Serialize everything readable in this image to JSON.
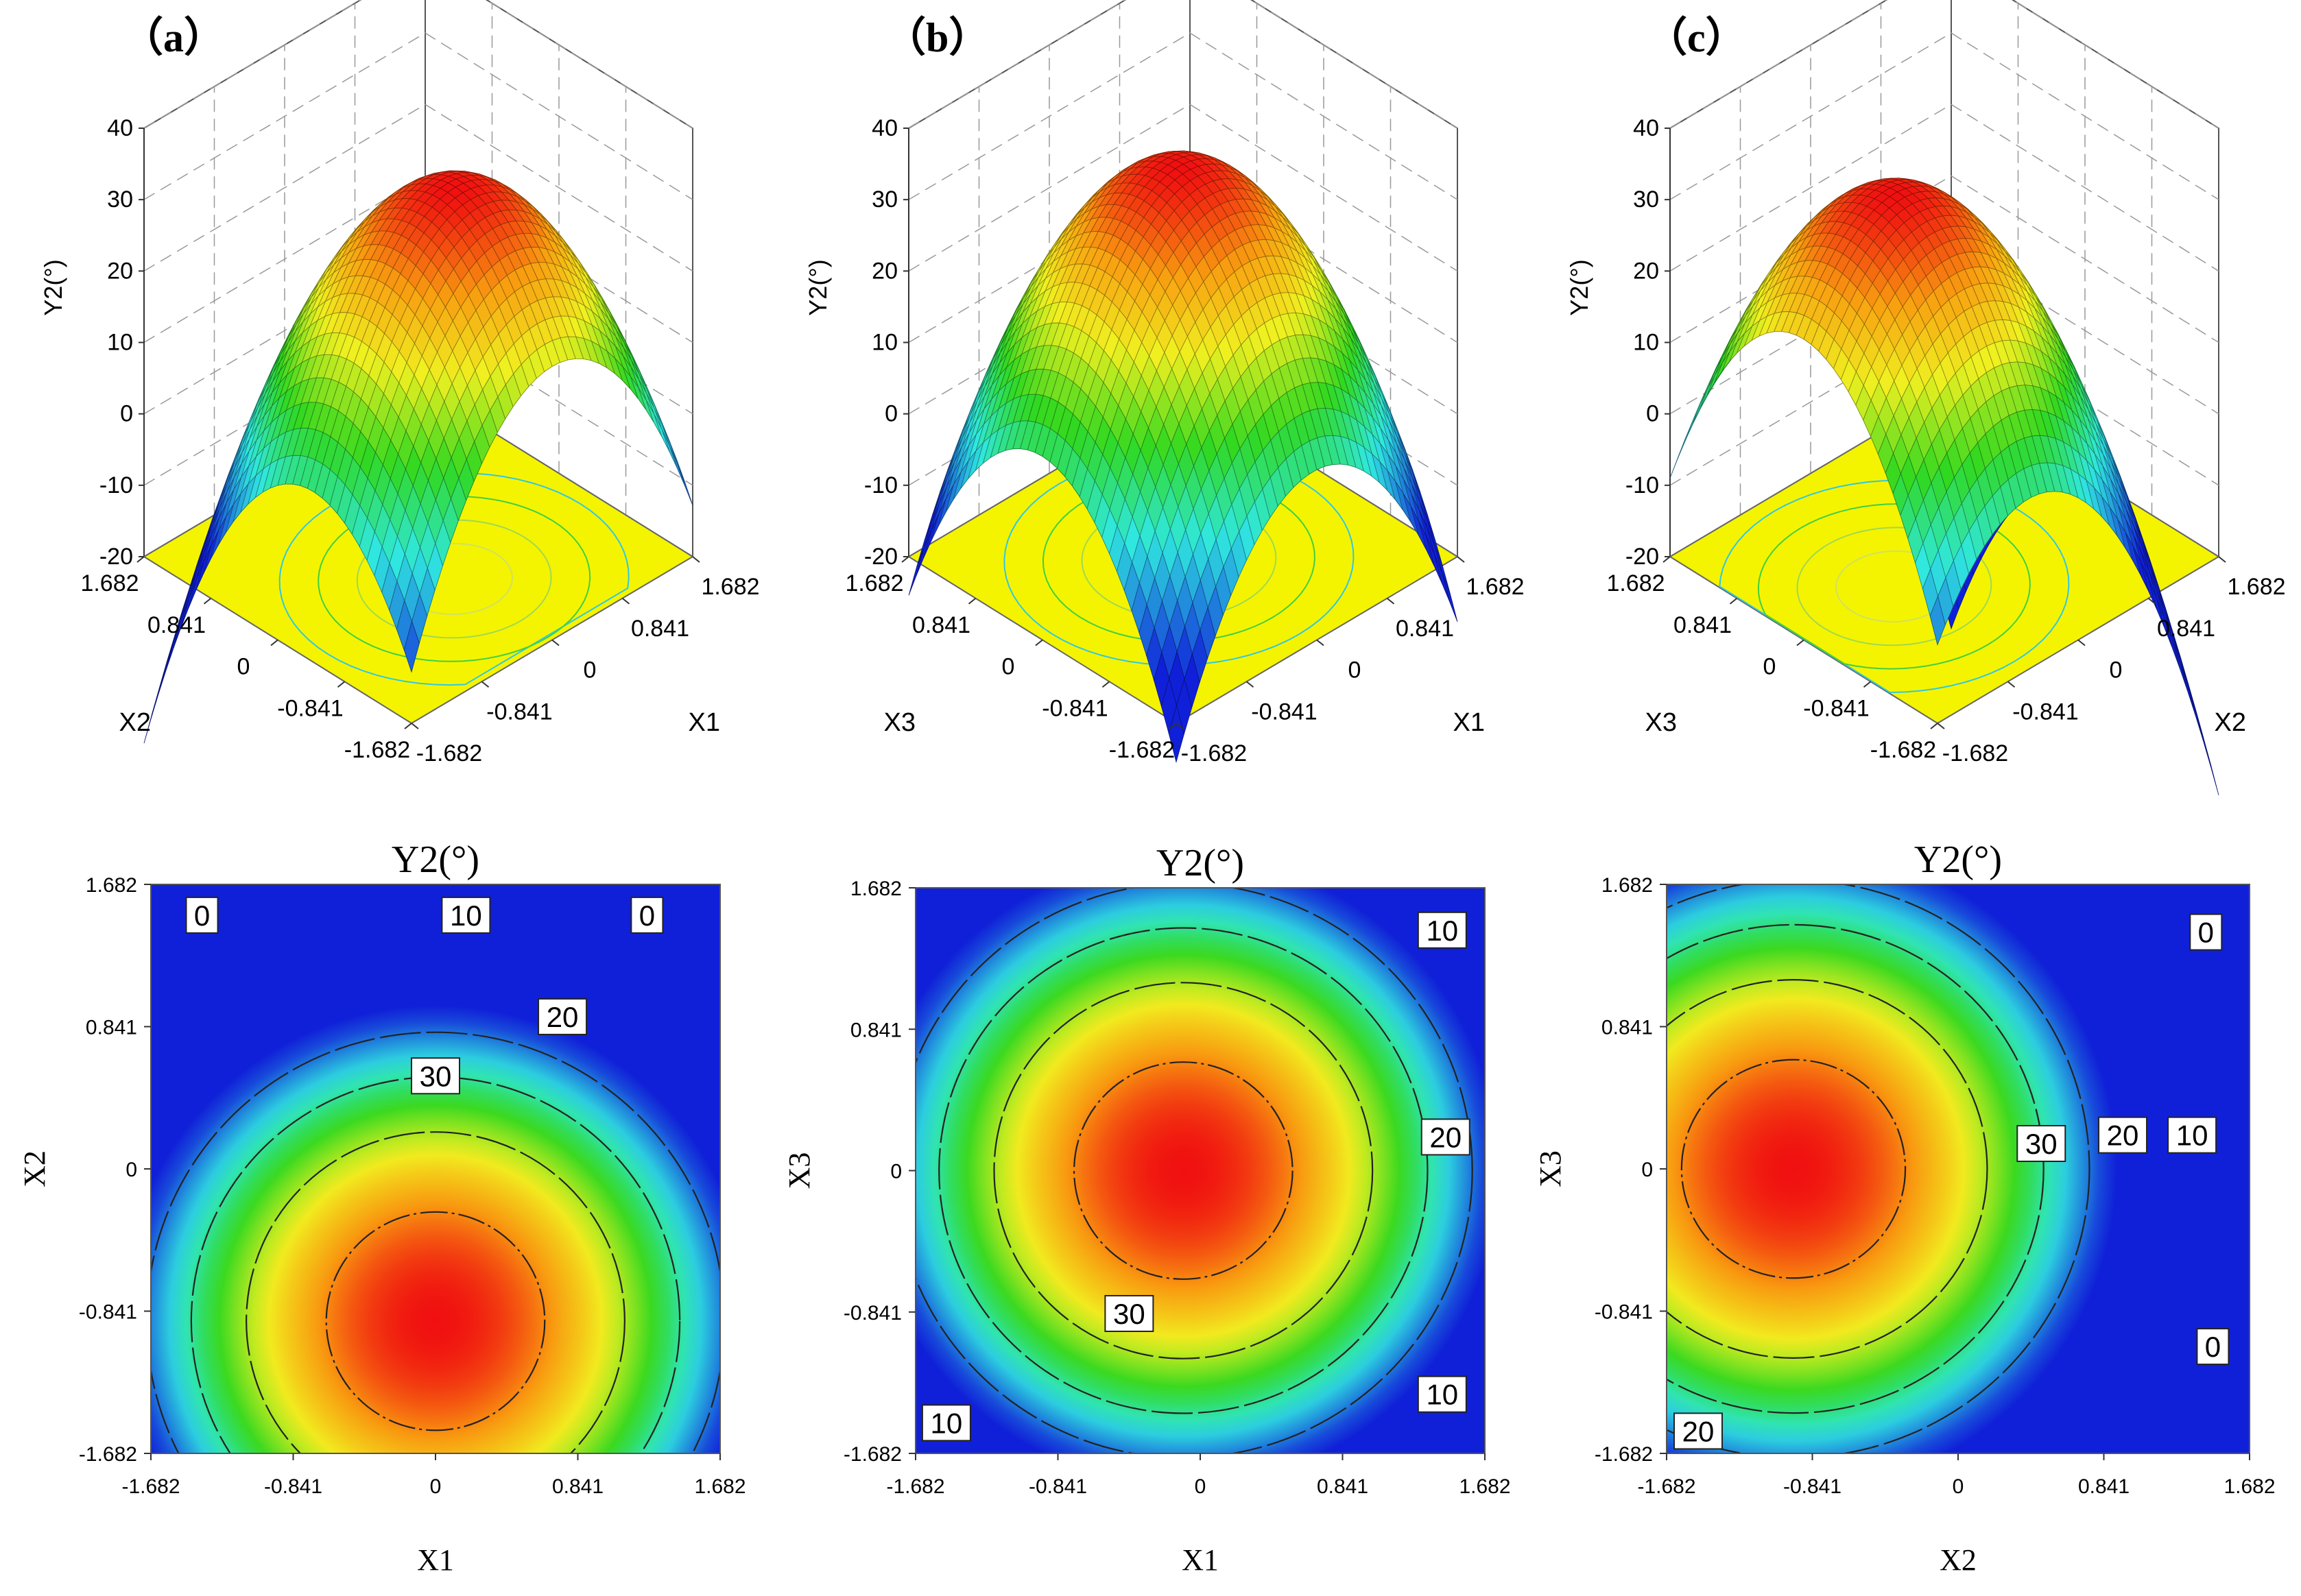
{
  "figure": {
    "panel_labels": [
      "（a）",
      "（b）",
      "（c）"
    ]
  },
  "colors": {
    "low": "#1020d8",
    "cyan": "#30e8e0",
    "green": "#30d820",
    "yellow": "#f0f020",
    "orange": "#f8a010",
    "high": "#f01010",
    "base_plane": "#f4f400",
    "contour_line": "#222222"
  },
  "chart_data": [
    {
      "panel": "a",
      "type": "surface3d",
      "zlabel": "Y2(°)",
      "xlabel": "X1",
      "ylabel": "X2",
      "zlim": [
        -20,
        40
      ],
      "zticks": [
        "-20",
        "-10",
        "0",
        "10",
        "20",
        "30",
        "40"
      ],
      "xticks": [
        "-1.682",
        "-0.841",
        "0",
        "0.841",
        "1.682"
      ],
      "yticks": [
        "-1.682",
        "-0.841",
        "0",
        "0.841",
        "1.682"
      ],
      "model": {
        "peak": 35,
        "cx": 0,
        "cy": -0.45,
        "ax": 11,
        "ay": 11
      }
    },
    {
      "panel": "b",
      "type": "surface3d",
      "zlabel": "Y2(°)",
      "xlabel": "X1",
      "ylabel": "X3",
      "zlim": [
        -20,
        40
      ],
      "zticks": [
        "-20",
        "-10",
        "0",
        "10",
        "20",
        "30",
        "40"
      ],
      "xticks": [
        "-1.682",
        "-0.841",
        "0",
        "0.841",
        "1.682"
      ],
      "yticks": [
        "-1.682",
        "-0.841",
        "0",
        "0.841",
        "1.682"
      ],
      "model": {
        "peak": 35,
        "cx": -0.05,
        "cy": 0.0,
        "ax": 11,
        "ay": 11
      }
    },
    {
      "panel": "c",
      "type": "surface3d",
      "zlabel": "Y2(°)",
      "xlabel": "X2",
      "ylabel": "X3",
      "zlim": [
        -20,
        40
      ],
      "zticks": [
        "-20",
        "-10",
        "0",
        "10",
        "20",
        "30",
        "40"
      ],
      "xticks": [
        "-1.682",
        "-0.841",
        "0",
        "0.841",
        "1.682"
      ],
      "yticks": [
        "-1.682",
        "-0.841",
        "0",
        "0.841",
        "1.682"
      ],
      "model": {
        "peak": 35,
        "cx": -0.6,
        "cy": 0.0,
        "ax": 11,
        "ay": 11
      }
    },
    {
      "panel": "a",
      "type": "contour",
      "title": "Y2(°)",
      "xlabel": "X1",
      "ylabel": "X2",
      "xlim": [
        -1.682,
        1.682
      ],
      "ylim": [
        -1.682,
        1.682
      ],
      "xticks": [
        "-1.682",
        "-0.841",
        "0",
        "0.841",
        "1.682"
      ],
      "yticks": [
        "-1.682",
        "-0.841",
        "0",
        "0.841",
        "1.682"
      ],
      "levels": [
        0,
        10,
        20,
        30
      ],
      "model": {
        "peak": 35,
        "cx": 0,
        "cy": -0.9,
        "ax": 12,
        "ay": 12
      },
      "labels": [
        {
          "text": "0",
          "x": -1.38,
          "y": 1.5
        },
        {
          "text": "10",
          "x": 0.18,
          "y": 1.5
        },
        {
          "text": "0",
          "x": 1.25,
          "y": 1.5
        },
        {
          "text": "20",
          "x": 0.75,
          "y": 0.9
        },
        {
          "text": "30",
          "x": 0.0,
          "y": 0.55
        }
      ]
    },
    {
      "panel": "b",
      "type": "contour",
      "title": "Y2(°)",
      "xlabel": "X1",
      "ylabel": "X3",
      "xlim": [
        -1.682,
        1.682
      ],
      "ylim": [
        -1.682,
        1.682
      ],
      "xticks": [
        "-1.682",
        "-0.841",
        "0",
        "0.841",
        "1.682"
      ],
      "yticks": [
        "-1.682",
        "-0.841",
        "0",
        "0.841",
        "1.682"
      ],
      "levels": [
        0,
        10,
        20,
        30
      ],
      "model": {
        "peak": 35,
        "cx": -0.1,
        "cy": 0.0,
        "ax": 12,
        "ay": 12
      },
      "labels": [
        {
          "text": "10",
          "x": 1.43,
          "y": 1.43
        },
        {
          "text": "20",
          "x": 1.45,
          "y": 0.2
        },
        {
          "text": "30",
          "x": -0.42,
          "y": -0.85
        },
        {
          "text": "10",
          "x": 1.43,
          "y": -1.33
        },
        {
          "text": "10",
          "x": -1.5,
          "y": -1.5
        }
      ]
    },
    {
      "panel": "c",
      "type": "contour",
      "title": "Y2(°)",
      "xlabel": "X2",
      "ylabel": "X3",
      "xlim": [
        -1.682,
        1.682
      ],
      "ylim": [
        -1.682,
        1.682
      ],
      "xticks": [
        "-1.682",
        "-0.841",
        "0",
        "0.841",
        "1.682"
      ],
      "yticks": [
        "-1.682",
        "-0.841",
        "0",
        "0.841",
        "1.682"
      ],
      "levels": [
        0,
        10,
        20,
        30
      ],
      "model": {
        "peak": 35,
        "cx": -0.95,
        "cy": 0.0,
        "ax": 12,
        "ay": 12
      },
      "labels": [
        {
          "text": "0",
          "x": 1.43,
          "y": 1.4
        },
        {
          "text": "30",
          "x": 0.48,
          "y": 0.15
        },
        {
          "text": "20",
          "x": 0.95,
          "y": 0.2
        },
        {
          "text": "10",
          "x": 1.35,
          "y": 0.2
        },
        {
          "text": "0",
          "x": 1.47,
          "y": -1.05
        },
        {
          "text": "20",
          "x": -1.5,
          "y": -1.55
        }
      ]
    }
  ]
}
